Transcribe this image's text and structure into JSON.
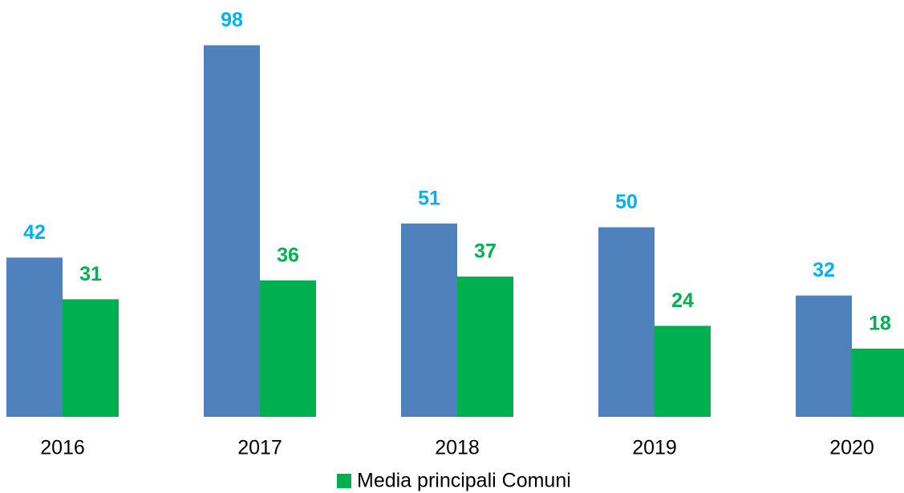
{
  "chart_data": {
    "type": "bar",
    "categories": [
      "2016",
      "2017",
      "2018",
      "2019",
      "2020"
    ],
    "series": [
      {
        "color": "#4f81bd",
        "label_color": "#00b0f0",
        "values": [
          42,
          98,
          51,
          50,
          32
        ]
      },
      {
        "name": "Media principali Comuni",
        "color": "#00b050",
        "label_color": "#00b050",
        "values": [
          31,
          36,
          37,
          24,
          18
        ]
      }
    ],
    "legend": "bottom"
  }
}
